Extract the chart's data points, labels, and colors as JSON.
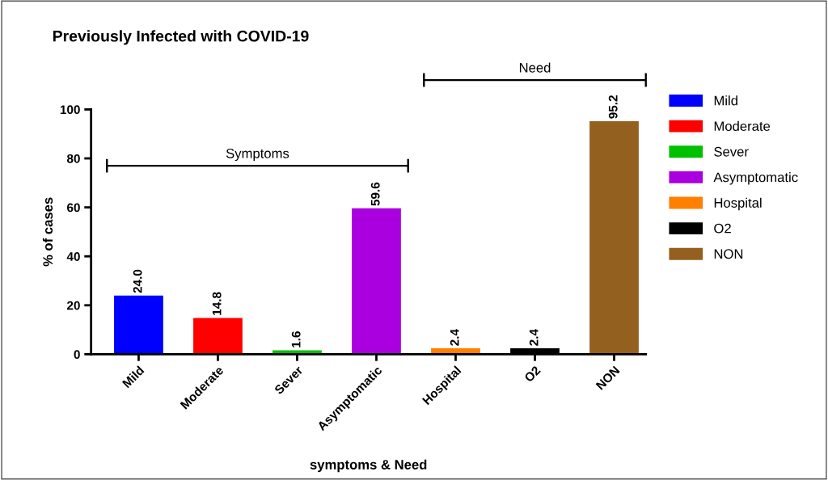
{
  "chart_data": {
    "type": "bar",
    "title": "Previously Infected with COVID-19",
    "xlabel": "symptoms & Need",
    "ylabel": "% of cases",
    "categories": [
      "Mild",
      "Moderate",
      "Sever",
      "Asymptomatic",
      "Hospital",
      "O2",
      "NON"
    ],
    "series": [
      {
        "name": "Mild",
        "color": "#0000ff",
        "values": [
          24.0,
          null,
          null,
          null,
          null,
          null,
          null
        ],
        "value_labels": [
          "24.0",
          null,
          null,
          null,
          null,
          null,
          null
        ]
      },
      {
        "name": "Moderate",
        "color": "#ff0000",
        "values": [
          null,
          14.8,
          null,
          null,
          null,
          null,
          null
        ],
        "value_labels": [
          null,
          "14.8",
          null,
          null,
          null,
          null,
          null
        ]
      },
      {
        "name": "Sever",
        "color": "#00c000",
        "values": [
          null,
          null,
          1.6,
          null,
          null,
          null,
          null
        ],
        "value_labels": [
          null,
          null,
          "1.6",
          null,
          null,
          null,
          null
        ]
      },
      {
        "name": "Asymptomatic",
        "color": "#aa00e0",
        "values": [
          null,
          null,
          null,
          59.6,
          null,
          null,
          null
        ],
        "value_labels": [
          null,
          null,
          null,
          "59.6",
          null,
          null,
          null
        ]
      },
      {
        "name": "Hospital",
        "color": "#ff8000",
        "values": [
          null,
          null,
          null,
          null,
          2.4,
          null,
          null
        ],
        "value_labels": [
          null,
          null,
          null,
          null,
          "2.4",
          null,
          null
        ]
      },
      {
        "name": "O2",
        "color": "#000000",
        "values": [
          null,
          null,
          null,
          null,
          null,
          2.4,
          null
        ],
        "value_labels": [
          null,
          null,
          null,
          null,
          null,
          "2.4",
          null
        ]
      },
      {
        "name": "NON",
        "color": "#946020",
        "values": [
          null,
          null,
          null,
          null,
          null,
          null,
          95.2
        ],
        "value_labels": [
          null,
          null,
          null,
          null,
          null,
          null,
          "95.2"
        ]
      }
    ],
    "ylim": [
      0,
      100
    ],
    "yticks": [
      0,
      20,
      40,
      60,
      80,
      100
    ],
    "grid": false,
    "legend": "right",
    "annotations": [
      "Symptoms",
      "Need"
    ]
  }
}
